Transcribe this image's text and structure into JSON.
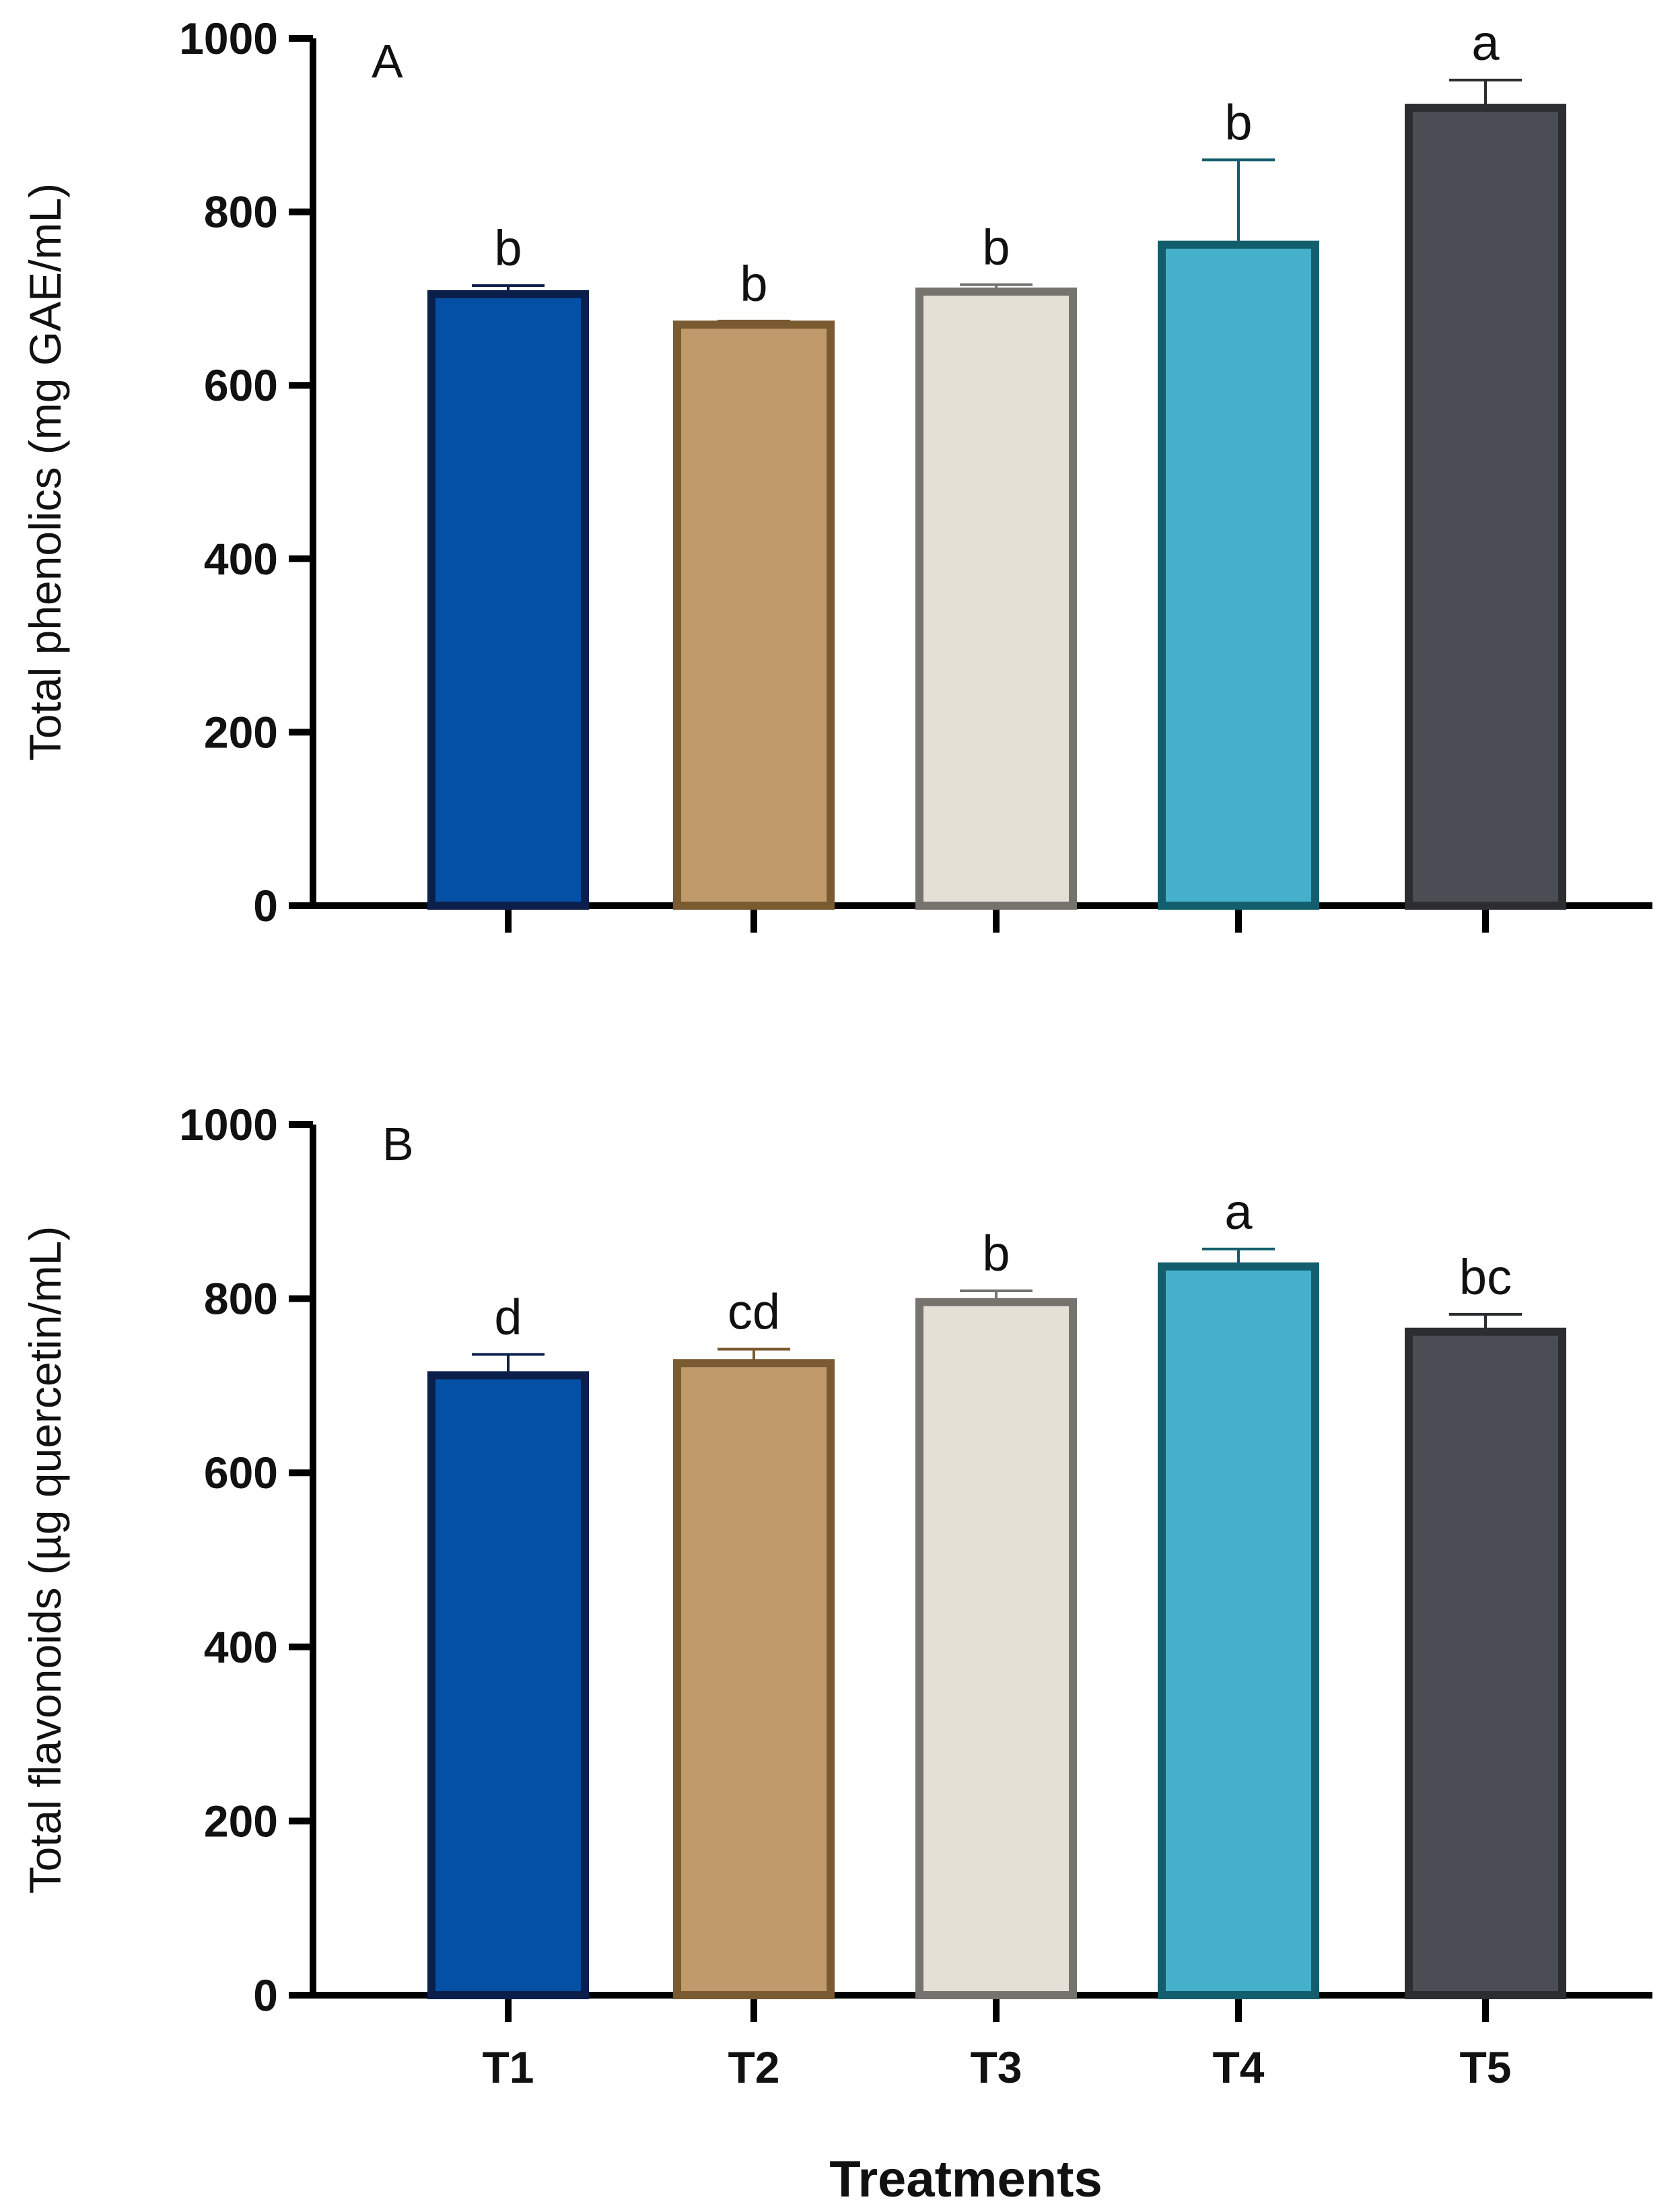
{
  "chart_data": [
    {
      "type": "bar",
      "panel_label": "A",
      "ylabel": "Total phenolics (mg GAE/mL)",
      "xlabel": "",
      "ylim": [
        0,
        1000
      ],
      "yticks": [
        "0",
        "200",
        "400",
        "600",
        "800",
        "1000"
      ],
      "categories": [
        "T1",
        "T2",
        "T3",
        "T4",
        "T5"
      ],
      "values": [
        705,
        670,
        708,
        762,
        920
      ],
      "errors": [
        10,
        4,
        8,
        98,
        32
      ],
      "significance": [
        "b",
        "b",
        "b",
        "b",
        "a"
      ],
      "show_category_labels": false
    },
    {
      "type": "bar",
      "panel_label": "B",
      "ylabel": "Total flavonoids (µg quercetin/mL)",
      "xlabel": "Treatments",
      "ylim": [
        0,
        1000
      ],
      "yticks": [
        "0",
        "200",
        "400",
        "600",
        "800",
        "1000"
      ],
      "categories": [
        "T1",
        "T2",
        "T3",
        "T4",
        "T5"
      ],
      "values": [
        712,
        726,
        796,
        837,
        762
      ],
      "errors": [
        24,
        16,
        13,
        20,
        20
      ],
      "significance": [
        "d",
        "cd",
        "b",
        "a",
        "bc"
      ],
      "show_category_labels": true
    }
  ],
  "colors": {
    "bar_fills": [
      "#0450a4",
      "#c19a6b",
      "#e4e0d6",
      "#45b0cc",
      "#4a4d53"
    ],
    "bar_strokes": [
      "#0b1f4a",
      "#7a5a30",
      "#76736e",
      "#125e6c",
      "#2b2d31"
    ],
    "axis": "#000000"
  }
}
